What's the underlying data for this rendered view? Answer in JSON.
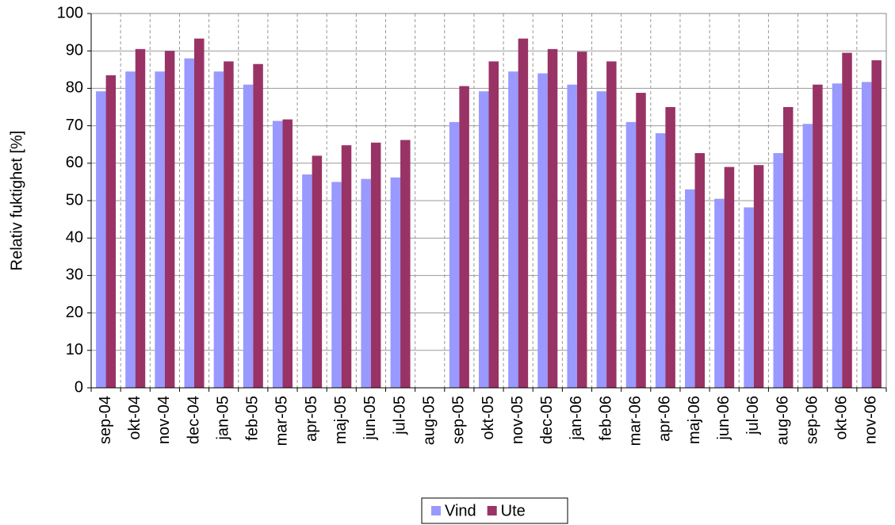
{
  "chart_data": {
    "type": "bar",
    "y_label": "Relativ fuktighet [%]",
    "categories": [
      "sep-04",
      "okt-04",
      "nov-04",
      "dec-04",
      "jan-05",
      "feb-05",
      "mar-05",
      "apr-05",
      "maj-05",
      "jun-05",
      "jul-05",
      "aug-05",
      "sep-05",
      "okt-05",
      "nov-05",
      "dec-05",
      "jan-06",
      "feb-06",
      "mar-06",
      "apr-06",
      "maj-06",
      "jun-06",
      "jul-06",
      "aug-06",
      "sep-06",
      "okt-06",
      "nov-06"
    ],
    "series": [
      {
        "name": "Vind",
        "color": "#9999ff",
        "values": [
          79.2,
          84.5,
          84.5,
          88,
          84.5,
          81,
          71.3,
          57,
          55,
          55.8,
          56.2,
          null,
          71,
          79.2,
          84.5,
          84,
          81,
          79.2,
          71,
          68,
          53,
          50.5,
          48.2,
          62.7,
          70.5,
          81.3,
          81.7
        ]
      },
      {
        "name": "Ute",
        "color": "#993366",
        "values": [
          83.5,
          90.5,
          90,
          93.3,
          87.2,
          86.5,
          71.7,
          62,
          64.8,
          65.5,
          66.2,
          null,
          80.6,
          87.2,
          93.3,
          90.5,
          89.8,
          87.2,
          78.8,
          75,
          62.7,
          59,
          59.5,
          75,
          81,
          89.5,
          87.5
        ]
      }
    ],
    "ylim": [
      0,
      100
    ],
    "yticks": [
      0,
      10,
      20,
      30,
      40,
      50,
      60,
      70,
      80,
      90,
      100
    ],
    "grid": true,
    "legend": "bottom"
  }
}
